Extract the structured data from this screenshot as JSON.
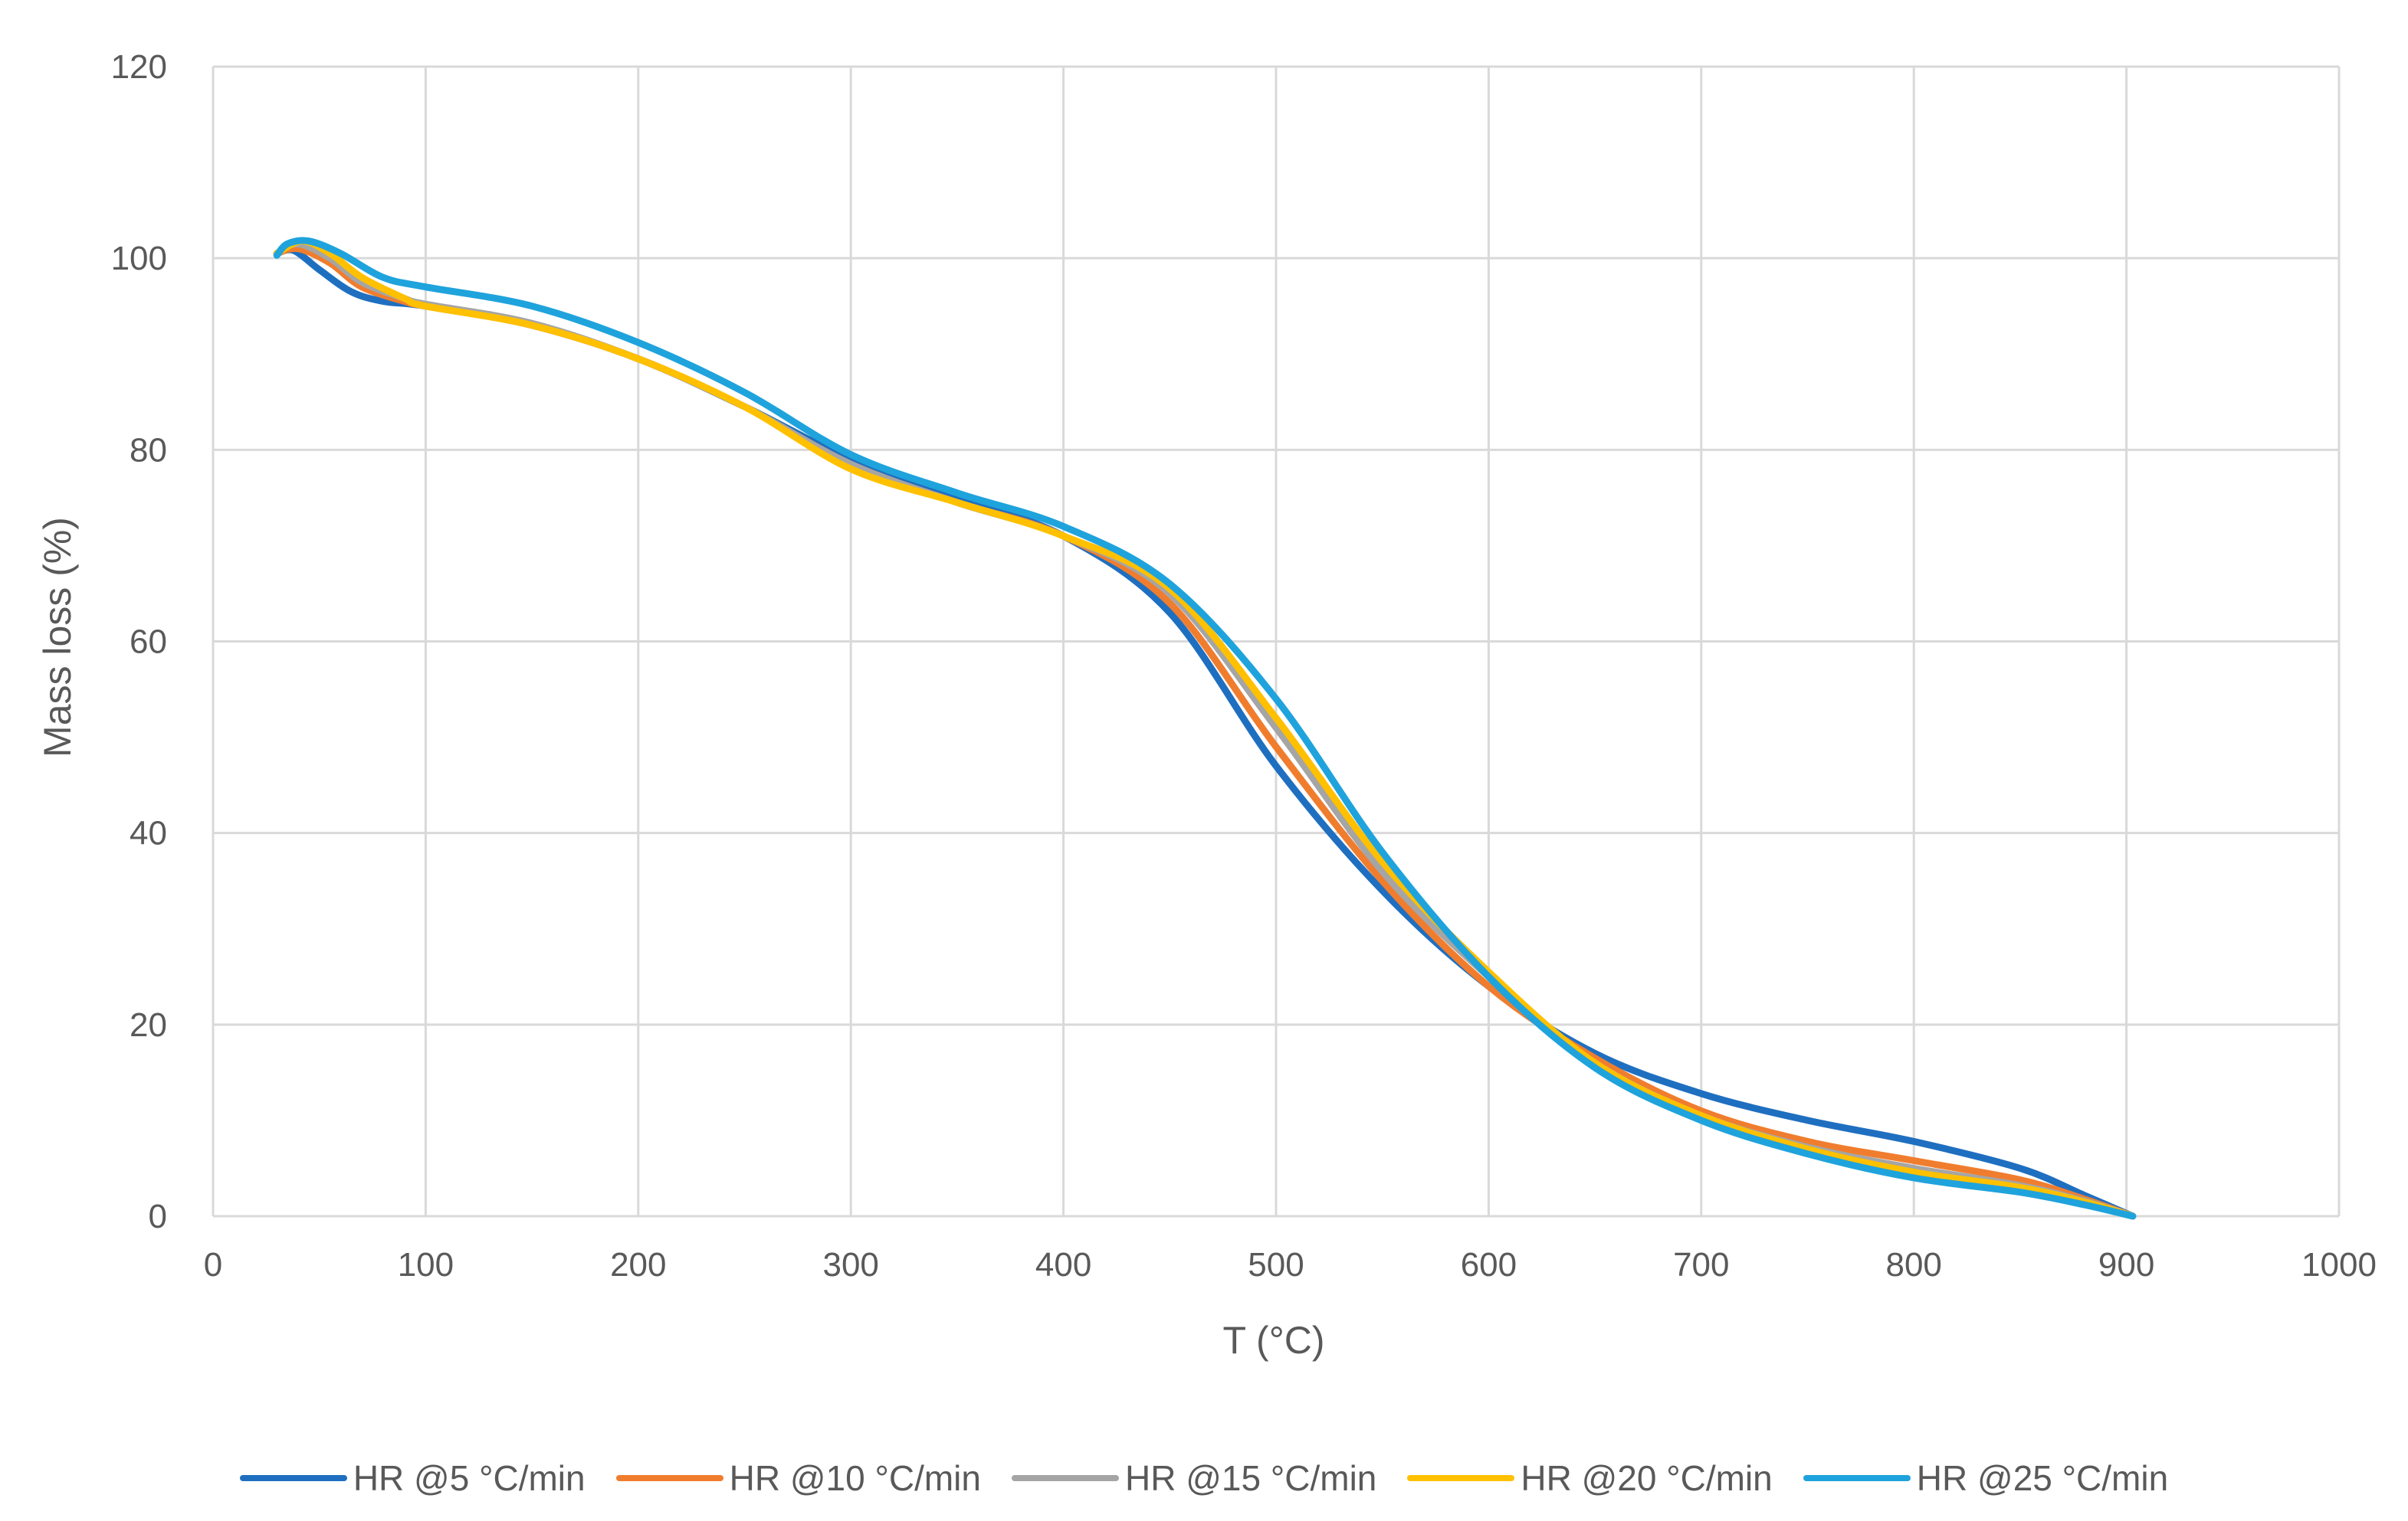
{
  "chart_data": {
    "type": "line",
    "xlabel": "T (°C)",
    "ylabel": "Mass loss (%)",
    "xlim": [
      0,
      1000
    ],
    "ylim": [
      0,
      120
    ],
    "x_ticks": [
      "0",
      "100",
      "200",
      "300",
      "400",
      "500",
      "600",
      "700",
      "800",
      "900",
      "1000"
    ],
    "y_ticks": [
      "0",
      "20",
      "40",
      "60",
      "80",
      "100",
      "120"
    ],
    "grid": true,
    "legend_position": "bottom",
    "series": [
      {
        "name": "HR @5 °C/min",
        "color": "#1F6FC0",
        "points": [
          [
            30,
            100.5
          ],
          [
            38,
            100.8
          ],
          [
            50,
            98.8
          ],
          [
            65,
            96.5
          ],
          [
            80,
            95.5
          ],
          [
            100,
            95
          ],
          [
            150,
            93
          ],
          [
            200,
            89.5
          ],
          [
            250,
            84.5
          ],
          [
            300,
            79
          ],
          [
            350,
            75
          ],
          [
            400,
            71
          ],
          [
            450,
            63
          ],
          [
            500,
            47
          ],
          [
            550,
            34
          ],
          [
            600,
            24
          ],
          [
            650,
            17
          ],
          [
            700,
            12.8
          ],
          [
            750,
            10
          ],
          [
            800,
            7.8
          ],
          [
            850,
            5
          ],
          [
            880,
            2.2
          ],
          [
            903,
            0
          ]
        ]
      },
      {
        "name": "HR @10 °C/min",
        "color": "#F07D2E",
        "points": [
          [
            30,
            100.5
          ],
          [
            40,
            101
          ],
          [
            55,
            99.5
          ],
          [
            70,
            97
          ],
          [
            90,
            95.5
          ],
          [
            100,
            95
          ],
          [
            150,
            93
          ],
          [
            200,
            89.5
          ],
          [
            250,
            84.5
          ],
          [
            300,
            78.5
          ],
          [
            350,
            74.5
          ],
          [
            400,
            71
          ],
          [
            450,
            64
          ],
          [
            500,
            49
          ],
          [
            550,
            35
          ],
          [
            600,
            24
          ],
          [
            650,
            16.5
          ],
          [
            700,
            11
          ],
          [
            750,
            7.8
          ],
          [
            800,
            5.8
          ],
          [
            850,
            3.8
          ],
          [
            880,
            1.8
          ],
          [
            903,
            0
          ]
        ]
      },
      {
        "name": "HR @15 °C/min",
        "color": "#A5A5A5",
        "points": [
          [
            30,
            100.5
          ],
          [
            40,
            101.5
          ],
          [
            55,
            100
          ],
          [
            70,
            97.5
          ],
          [
            90,
            95.8
          ],
          [
            100,
            95.2
          ],
          [
            150,
            93.2
          ],
          [
            200,
            89.5
          ],
          [
            250,
            84.5
          ],
          [
            300,
            78.5
          ],
          [
            350,
            74.5
          ],
          [
            400,
            71
          ],
          [
            450,
            65
          ],
          [
            500,
            51
          ],
          [
            550,
            36
          ],
          [
            600,
            25
          ],
          [
            650,
            16
          ],
          [
            700,
            10.5
          ],
          [
            750,
            7.2
          ],
          [
            800,
            5
          ],
          [
            850,
            3.2
          ],
          [
            880,
            1.6
          ],
          [
            903,
            0
          ]
        ]
      },
      {
        "name": "HR @20 °C/min",
        "color": "#FFC000",
        "points": [
          [
            30,
            100.5
          ],
          [
            42,
            101.8
          ],
          [
            55,
            100.5
          ],
          [
            70,
            98
          ],
          [
            90,
            95.8
          ],
          [
            100,
            95
          ],
          [
            150,
            93
          ],
          [
            200,
            89.5
          ],
          [
            250,
            84.5
          ],
          [
            300,
            78
          ],
          [
            350,
            74.5
          ],
          [
            400,
            71
          ],
          [
            450,
            65.5
          ],
          [
            500,
            52
          ],
          [
            550,
            37
          ],
          [
            600,
            25.5
          ],
          [
            650,
            16
          ],
          [
            700,
            10.5
          ],
          [
            750,
            7
          ],
          [
            800,
            4.6
          ],
          [
            850,
            3
          ],
          [
            880,
            1.5
          ],
          [
            903,
            0
          ]
        ]
      },
      {
        "name": "HR @25 °C/min",
        "color": "#1FA3DC",
        "points": [
          [
            30,
            100.3
          ],
          [
            35,
            101.5
          ],
          [
            45,
            101.8
          ],
          [
            60,
            100.5
          ],
          [
            80,
            98
          ],
          [
            100,
            97
          ],
          [
            150,
            95
          ],
          [
            200,
            91.2
          ],
          [
            250,
            86
          ],
          [
            300,
            79.5
          ],
          [
            350,
            75.5
          ],
          [
            400,
            72
          ],
          [
            450,
            66
          ],
          [
            500,
            54
          ],
          [
            550,
            38
          ],
          [
            600,
            25
          ],
          [
            650,
            15.5
          ],
          [
            700,
            10
          ],
          [
            750,
            6.5
          ],
          [
            800,
            4
          ],
          [
            850,
            2.5
          ],
          [
            880,
            1.2
          ],
          [
            903,
            0
          ]
        ]
      }
    ]
  }
}
